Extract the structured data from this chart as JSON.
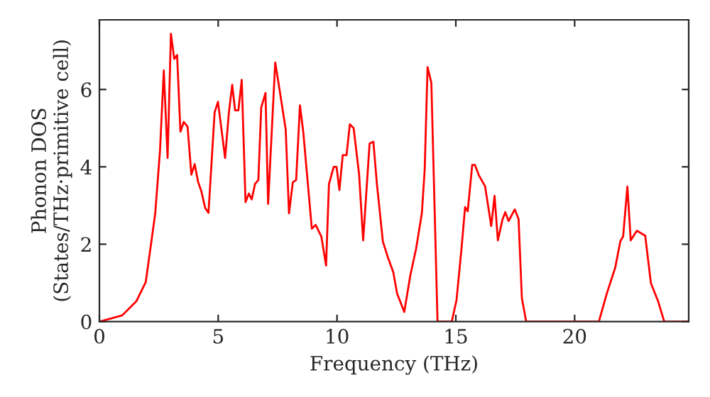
{
  "chart_data": {
    "type": "line",
    "xlabel": "Frequency (THz)",
    "ylabel": "Phonon DOS\n(States/THz·primitive cell)",
    "xlim": [
      0,
      24.8
    ],
    "ylim": [
      0,
      7.8
    ],
    "xticks": [
      0,
      5,
      10,
      15,
      20
    ],
    "yticks": [
      0,
      2,
      4,
      6
    ],
    "grid": false,
    "legend": false,
    "marker": "none",
    "line_style": "solid",
    "series": [
      {
        "color": "#ff0000",
        "x": [
          0,
          0.96,
          1.56,
          1.95,
          2.16,
          2.35,
          2.55,
          2.71,
          2.87,
          3.01,
          3.15,
          3.27,
          3.41,
          3.55,
          3.71,
          3.87,
          4.01,
          4.15,
          4.29,
          4.45,
          4.59,
          4.85,
          4.99,
          5.29,
          5.45,
          5.59,
          5.71,
          5.85,
          5.99,
          6.15,
          6.29,
          6.41,
          6.55,
          6.69,
          6.81,
          6.99,
          7.1,
          7.4,
          7.58,
          7.84,
          7.98,
          8.14,
          8.28,
          8.44,
          8.58,
          8.94,
          9.1,
          9.34,
          9.54,
          9.66,
          9.86,
          9.98,
          10.1,
          10.24,
          10.4,
          10.54,
          10.7,
          10.93,
          11.1,
          11.37,
          11.53,
          11.68,
          11.93,
          12.13,
          12.37,
          12.53,
          12.83,
          13.09,
          13.33,
          13.57,
          13.69,
          13.81,
          13.97,
          14.23,
          14.83,
          15.03,
          15.23,
          15.39,
          15.5,
          15.69,
          15.8,
          15.97,
          16.23,
          16.49,
          16.63,
          16.77,
          16.96,
          17.08,
          17.22,
          17.48,
          17.64,
          17.78,
          17.96,
          21.02,
          21.35,
          21.71,
          21.92,
          22.04,
          22.22,
          22.36,
          22.62,
          22.97,
          23.21,
          23.51,
          23.77,
          24.8
        ],
        "values": [
          0,
          0.16,
          0.53,
          1.02,
          1.95,
          2.8,
          4.42,
          6.49,
          4.23,
          7.44,
          6.79,
          6.89,
          4.91,
          5.16,
          5.04,
          3.8,
          4.07,
          3.62,
          3.37,
          2.94,
          2.81,
          5.41,
          5.68,
          4.23,
          5.41,
          6.12,
          5.46,
          5.46,
          6.25,
          3.09,
          3.31,
          3.16,
          3.56,
          3.66,
          5.53,
          5.91,
          3.04,
          6.7,
          6.0,
          4.97,
          2.8,
          3.6,
          3.66,
          5.59,
          4.9,
          2.4,
          2.5,
          2.2,
          1.45,
          3.55,
          4.0,
          4.0,
          3.4,
          4.3,
          4.3,
          5.1,
          5.0,
          3.8,
          2.1,
          4.6,
          4.65,
          3.55,
          2.07,
          1.68,
          1.27,
          0.72,
          0.25,
          1.21,
          1.89,
          2.8,
          3.93,
          6.58,
          6.17,
          0,
          0,
          0.56,
          1.83,
          2.96,
          2.85,
          4.05,
          4.05,
          3.78,
          3.5,
          2.47,
          3.25,
          2.1,
          2.63,
          2.83,
          2.6,
          2.9,
          2.65,
          0.6,
          0,
          0,
          0.72,
          1.4,
          2.07,
          2.2,
          3.49,
          2.1,
          2.35,
          2.22,
          0.99,
          0.53,
          0,
          0
        ]
      }
    ]
  }
}
